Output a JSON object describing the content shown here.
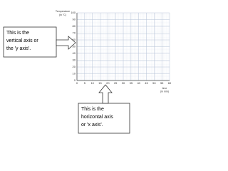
{
  "chart_data": {
    "type": "line",
    "ylabel": [
      "Temperature",
      "(in °C)"
    ],
    "xlabel": [
      "time",
      "(in min)"
    ],
    "xlim": [
      0,
      60
    ],
    "xticks": [
      0,
      5,
      10,
      15,
      20,
      25,
      30,
      35,
      40,
      45,
      50,
      55,
      60
    ],
    "ylim": [
      0,
      100
    ],
    "yticks": [
      0,
      10,
      20,
      30,
      40,
      50,
      60,
      70,
      80,
      90,
      100
    ],
    "grid": true,
    "annotations": [
      {
        "lines": [
          "This is the",
          "vertical axis or",
          "the 'y axis'."
        ]
      },
      {
        "lines": [
          "This is the",
          "horizontal axis",
          "or 'x axis'."
        ]
      }
    ]
  }
}
